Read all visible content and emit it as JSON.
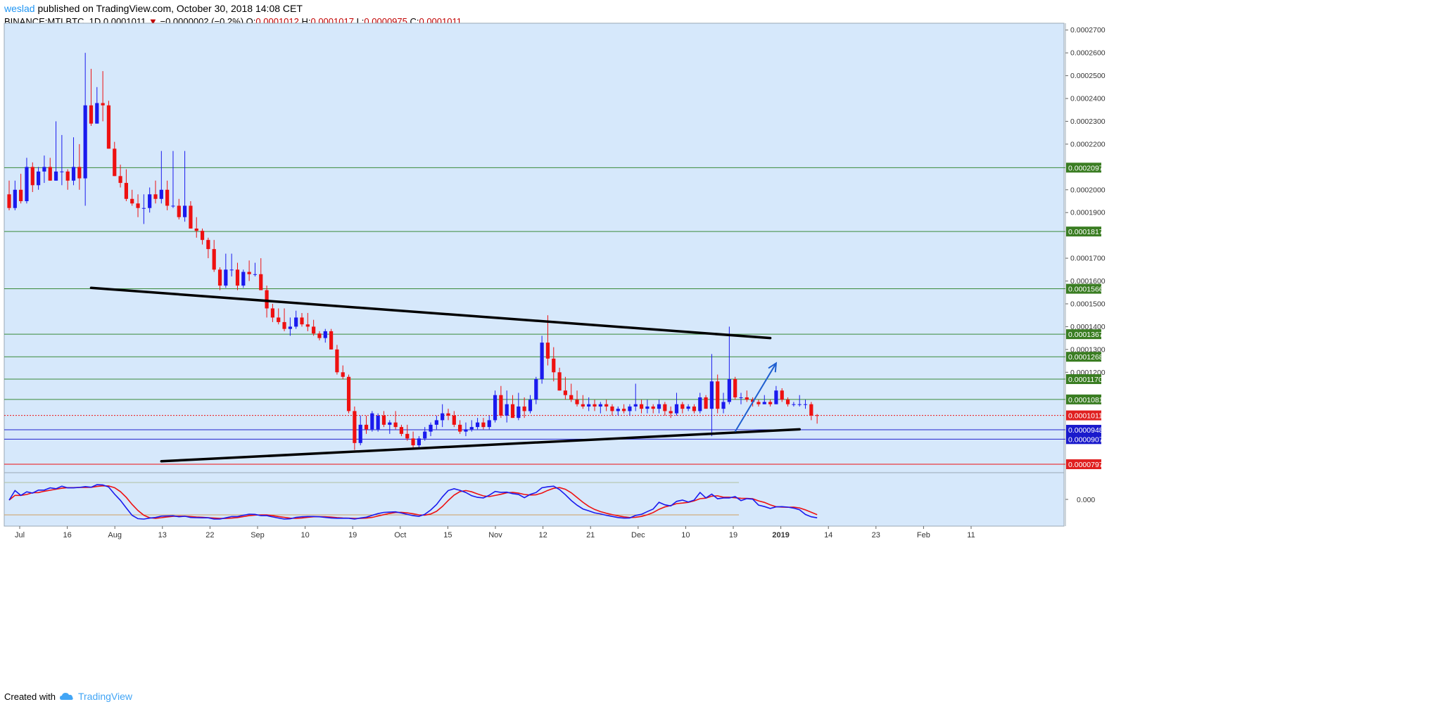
{
  "header": {
    "author": "weslad",
    "published_text": " published on TradingView.com, October 30, 2018 14:08 CET",
    "symbol": "BINANCE:MTLBTC, 1D",
    "last": "0.0001011",
    "change_arrow": "▼",
    "change": "−0.0000002 (−0.2%)",
    "o_label": "O:",
    "o_value": "0.0001012",
    "h_label": "H:",
    "h_value": "0.0001017",
    "l_label": "L:",
    "l_value": "0.0000975",
    "c_label": "C:",
    "c_value": "0.0001011"
  },
  "footer": {
    "created_with": "Created with",
    "brand": "TradingView",
    "logo_icon": "tradingview-cloud-icon"
  },
  "colors": {
    "chart_bg": "#d6e8fb",
    "up_candle": "#1a1aee",
    "down_candle": "#ee1111",
    "level_line": "#3a8a3a",
    "level_label_bg": "#3a7d22",
    "support_line": "#2222cc",
    "last_price": "#ee1111",
    "trendline": "#000000",
    "arrow": "#1f5fd0"
  },
  "chart_data": {
    "type": "candlestick",
    "title": "BINANCE:MTLBTC, 1D",
    "x_axis": {
      "tick_labels": [
        "Jul",
        "16",
        "Aug",
        "13",
        "22",
        "Sep",
        "10",
        "19",
        "Oct",
        "15",
        "Nov",
        "12",
        "21",
        "Dec",
        "10",
        "19",
        "2019",
        "14",
        "23",
        "Feb",
        "11"
      ],
      "range": [
        "2018-07-01",
        "2019-02-11"
      ]
    },
    "y_axis": {
      "tick_labels": [
        "0.0002700",
        "0.0002600",
        "0.0002500",
        "0.0002400",
        "0.0002300",
        "0.0002200",
        "0.0002000",
        "0.0001900",
        "0.0001700",
        "0.0001600",
        "0.0001500",
        "0.0001400",
        "0.0001300",
        "0.0001200"
      ],
      "range": [
        7.6e-05,
        0.000273
      ],
      "scale": "linear",
      "side": "right"
    },
    "horizontal_levels": [
      {
        "label": "0.0002097",
        "value": 0.0002097,
        "style": "green"
      },
      {
        "label": "0.0001817",
        "value": 0.0001817,
        "style": "green"
      },
      {
        "label": "0.0001566",
        "value": 0.0001566,
        "style": "green"
      },
      {
        "label": "0.0001367",
        "value": 0.0001367,
        "style": "green"
      },
      {
        "label": "0.0001268",
        "value": 0.0001268,
        "style": "green"
      },
      {
        "label": "0.0001170",
        "value": 0.000117,
        "style": "green"
      },
      {
        "label": "0.0001081",
        "value": 0.0001081,
        "style": "green"
      },
      {
        "label": "0.0001011",
        "value": 0.0001011,
        "style": "last-price"
      },
      {
        "label": "0.0000948",
        "value": 9.48e-05,
        "style": "blue"
      },
      {
        "label": "0.0000907",
        "value": 9.07e-05,
        "style": "blue"
      },
      {
        "label": "0.0000797",
        "value": 7.97e-05,
        "style": "red"
      }
    ],
    "trendlines": [
      {
        "name": "resistance",
        "from": [
          "2018-07-11",
          0.000157
        ],
        "to": [
          "2018-11-04",
          0.000135
        ]
      },
      {
        "name": "support",
        "from": [
          "2018-07-23",
          8.1e-05
        ],
        "to": [
          "2018-11-09",
          9.5e-05
        ]
      }
    ],
    "arrow": {
      "from": [
        "2018-10-29",
        9.4e-05
      ],
      "to": [
        "2018-11-05",
        0.000124
      ]
    },
    "candles_ohlc": [
      [
        0.000198,
        0.000204,
        0.000191,
        0.000192
      ],
      [
        0.000192,
        0.000204,
        0.000191,
        0.0002
      ],
      [
        0.0002,
        0.000207,
        0.000194,
        0.000195
      ],
      [
        0.000195,
        0.000214,
        0.000194,
        0.00021
      ],
      [
        0.00021,
        0.000212,
        0.000199,
        0.000202
      ],
      [
        0.000202,
        0.00021,
        0.0002,
        0.000208
      ],
      [
        0.000208,
        0.000215,
        0.000203,
        0.00021
      ],
      [
        0.00021,
        0.000214,
        0.000204,
        0.000204
      ],
      [
        0.000204,
        0.00023,
        0.000204,
        0.000208
      ],
      [
        0.000208,
        0.000224,
        0.000202,
        0.000208
      ],
      [
        0.000208,
        0.000209,
        0.0002,
        0.000204
      ],
      [
        0.000204,
        0.000223,
        0.000202,
        0.00021
      ],
      [
        0.00021,
        0.00022,
        0.0002,
        0.000205
      ],
      [
        0.000205,
        0.00026,
        0.000193,
        0.000237
      ],
      [
        0.000237,
        0.000253,
        0.000228,
        0.000229
      ],
      [
        0.000229,
        0.000245,
        0.000229,
        0.000238
      ],
      [
        0.000238,
        0.000252,
        0.00023,
        0.000237
      ],
      [
        0.000237,
        0.000239,
        0.000218,
        0.000218
      ],
      [
        0.000218,
        0.000221,
        0.000206,
        0.000206
      ],
      [
        0.000206,
        0.000211,
        0.000201,
        0.000203
      ],
      [
        0.000203,
        0.000209,
        0.000195,
        0.000196
      ],
      [
        0.000196,
        0.0002,
        0.000193,
        0.000194
      ],
      [
        0.000194,
        0.000198,
        0.000188,
        0.000192
      ],
      [
        0.000192,
        0.000198,
        0.000185,
        0.000192
      ],
      [
        0.000192,
        0.000201,
        0.00019,
        0.000198
      ],
      [
        0.000198,
        0.000204,
        0.000194,
        0.000196
      ],
      [
        0.000196,
        0.000217,
        0.000194,
        0.0002
      ],
      [
        0.0002,
        0.000204,
        0.000191,
        0.000193
      ],
      [
        0.000193,
        0.000217,
        0.000192,
        0.000193
      ],
      [
        0.000193,
        0.000196,
        0.000187,
        0.000188
      ],
      [
        0.000188,
        0.000217,
        0.000186,
        0.000193
      ],
      [
        0.000193,
        0.000195,
        0.000183,
        0.000183
      ],
      [
        0.000183,
        0.000188,
        0.000179,
        0.000182
      ],
      [
        0.000182,
        0.000183,
        0.000176,
        0.000178
      ],
      [
        0.000178,
        0.000179,
        0.00017,
        0.000174
      ],
      [
        0.000174,
        0.000178,
        0.000164,
        0.000165
      ],
      [
        0.000165,
        0.000166,
        0.000156,
        0.000158
      ],
      [
        0.000158,
        0.000172,
        0.000157,
        0.000165
      ],
      [
        0.000165,
        0.000172,
        0.000162,
        0.000165
      ],
      [
        0.000165,
        0.000168,
        0.000156,
        0.000158
      ],
      [
        0.000158,
        0.000165,
        0.000157,
        0.000164
      ],
      [
        0.000164,
        0.000169,
        0.00016,
        0.000163
      ],
      [
        0.000163,
        0.000168,
        0.000162,
        0.000163
      ],
      [
        0.000163,
        0.00017,
        0.000156,
        0.000156
      ],
      [
        0.000156,
        0.000158,
        0.000144,
        0.000148
      ],
      [
        0.000148,
        0.00015,
        0.000142,
        0.000144
      ],
      [
        0.000144,
        0.000148,
        0.000141,
        0.000142
      ],
      [
        0.000142,
        0.000148,
        0.000138,
        0.000139
      ],
      [
        0.000139,
        0.000144,
        0.000136,
        0.00014
      ],
      [
        0.00014,
        0.000147,
        0.000139,
        0.000144
      ],
      [
        0.000144,
        0.000146,
        0.00014,
        0.000141
      ],
      [
        0.000141,
        0.000146,
        0.000138,
        0.00014
      ],
      [
        0.00014,
        0.000143,
        0.000136,
        0.000137
      ],
      [
        0.000137,
        0.000138,
        0.000134,
        0.000135
      ],
      [
        0.000135,
        0.000139,
        0.000133,
        0.000138
      ],
      [
        0.000138,
        0.000139,
        0.00013,
        0.00013
      ],
      [
        0.00013,
        0.000132,
        0.000119,
        0.00012
      ],
      [
        0.00012,
        0.000123,
        0.000117,
        0.000118
      ],
      [
        0.000118,
        0.000119,
        0.000102,
        0.000103
      ],
      [
        0.000103,
        0.000105,
        8.6e-05,
        8.9e-05
      ],
      [
        8.9e-05,
        0.000101,
        8.8e-05,
        9.7e-05
      ],
      [
        9.7e-05,
        0.000101,
        9.3e-05,
        9.5e-05
      ],
      [
        9.5e-05,
        0.000103,
        9.4e-05,
        0.000102
      ],
      [
        9.5e-05,
        0.000102,
        9.4e-05,
        0.000101
      ],
      [
        0.000101,
        0.000103,
        9.6e-05,
        9.7e-05
      ],
      [
        9.7e-05,
        9.9e-05,
        9.3e-05,
        9.8e-05
      ],
      [
        9.8e-05,
        0.000103,
        9.5e-05,
        9.6e-05
      ],
      [
        9.6e-05,
        9.7e-05,
        9.2e-05,
        9.3e-05
      ],
      [
        9.3e-05,
        9.7e-05,
        9e-05,
        9.1e-05
      ],
      [
        9.1e-05,
        9.4e-05,
        8.7e-05,
        8.8e-05
      ],
      [
        8.8e-05,
        9.2e-05,
        8.7e-05,
        9.1e-05
      ],
      [
        9.1e-05,
        9.6e-05,
        9e-05,
        9.4e-05
      ],
      [
        9.4e-05,
        9.8e-05,
        9.2e-05,
        9.7e-05
      ],
      [
        9.7e-05,
        0.000101,
        9.5e-05,
        9.9e-05
      ],
      [
        9.9e-05,
        0.000106,
        9.6e-05,
        0.000102
      ],
      [
        0.000102,
        0.000104,
        9.9e-05,
        0.000101
      ],
      [
        0.000101,
        0.000103,
        9.6e-05,
        9.7e-05
      ],
      [
        9.7e-05,
        9.9e-05,
        9.3e-05,
        9.4e-05
      ],
      [
        9.4e-05,
        9.8e-05,
        9.2e-05,
        9.5e-05
      ],
      [
        9.5e-05,
        9.9e-05,
        9.4e-05,
        9.6e-05
      ],
      [
        9.6e-05,
        0.0001,
        9.5e-05,
        9.8e-05
      ],
      [
        9.8e-05,
        0.0001,
        9.5e-05,
        9.6e-05
      ],
      [
        9.6e-05,
        0.000101,
        9.5e-05,
        9.9e-05
      ],
      [
        9.9e-05,
        0.000112,
        9.8e-05,
        0.00011
      ],
      [
        0.00011,
        0.000114,
        0.0001,
        0.000101
      ],
      [
        0.000101,
        0.000112,
        9.8e-05,
        0.000106
      ],
      [
        0.000106,
        0.00011,
        0.0001,
        0.0001
      ],
      [
        0.0001,
        0.000111,
        9.9e-05,
        0.000105
      ],
      [
        0.000105,
        0.000109,
        0.0001,
        0.000103
      ],
      [
        0.000103,
        0.00011,
        0.000102,
        0.000108
      ],
      [
        0.000108,
        0.000118,
        0.000106,
        0.000117
      ],
      [
        0.000117,
        0.000136,
        0.000115,
        0.000133
      ],
      [
        0.000133,
        0.000145,
        0.000123,
        0.000126
      ],
      [
        0.000126,
        0.000131,
        0.000116,
        0.00012
      ],
      [
        0.00012,
        0.000122,
        0.000112,
        0.000112
      ],
      [
        0.000112,
        0.000118,
        0.000108,
        0.00011
      ],
      [
        0.00011,
        0.000115,
        0.000107,
        0.000108
      ],
      [
        0.000108,
        0.000112,
        0.000105,
        0.000106
      ],
      [
        0.000106,
        0.00011,
        0.000104,
        0.000105
      ],
      [
        0.000105,
        0.000109,
        0.000103,
        0.000106
      ],
      [
        0.000106,
        0.000108,
        0.000103,
        0.000105
      ],
      [
        0.000105,
        0.000107,
        0.000102,
        0.000106
      ],
      [
        0.000106,
        0.000108,
        0.000103,
        0.000105
      ],
      [
        0.000105,
        0.000106,
        0.000101,
        0.000103
      ],
      [
        0.000103,
        0.000105,
        0.000101,
        0.000104
      ],
      [
        0.000104,
        0.000106,
        0.000102,
        0.000103
      ],
      [
        0.000103,
        0.000106,
        0.000101,
        0.000105
      ],
      [
        0.000105,
        0.000115,
        0.000103,
        0.000106
      ],
      [
        0.000106,
        0.000108,
        0.000102,
        0.000104
      ],
      [
        0.000104,
        0.000108,
        0.000102,
        0.000105
      ],
      [
        0.000105,
        0.000106,
        0.000102,
        0.000104
      ],
      [
        0.000104,
        0.000108,
        0.000102,
        0.000106
      ],
      [
        0.000106,
        0.000107,
        0.000101,
        0.000103
      ],
      [
        0.000103,
        0.000105,
        0.0001,
        0.000102
      ],
      [
        0.000102,
        0.000111,
        0.000101,
        0.000106
      ],
      [
        0.000106,
        0.000107,
        0.000102,
        0.000104
      ],
      [
        0.000104,
        0.000106,
        0.000103,
        0.000105
      ],
      [
        0.000105,
        0.000106,
        0.000102,
        0.000103
      ],
      [
        0.000103,
        0.000111,
        0.000102,
        0.000109
      ],
      [
        0.000109,
        0.00011,
        0.000104,
        0.000104
      ],
      [
        0.000104,
        0.000128,
        9.2e-05,
        0.000116
      ],
      [
        0.000116,
        0.000119,
        0.000102,
        0.000104
      ],
      [
        0.000104,
        0.000111,
        0.000102,
        0.000107
      ],
      [
        0.000107,
        0.00014,
        0.000106,
        0.000117
      ],
      [
        0.000117,
        0.000118,
        0.000108,
        0.000109
      ],
      [
        0.000109,
        0.000111,
        0.000106,
        0.000109
      ],
      [
        0.000109,
        0.000112,
        0.000107,
        0.000108
      ],
      [
        0.000108,
        0.000109,
        0.000105,
        0.000107
      ],
      [
        0.000107,
        0.000108,
        0.000105,
        0.000106
      ],
      [
        0.000106,
        0.00011,
        0.000106,
        0.000107
      ],
      [
        0.000107,
        0.000108,
        0.000105,
        0.000106
      ],
      [
        0.000106,
        0.000114,
        0.000106,
        0.000112
      ],
      [
        0.000112,
        0.000113,
        0.000107,
        0.000108
      ],
      [
        0.000108,
        0.000109,
        0.000105,
        0.000106
      ],
      [
        0.000106,
        0.000107,
        0.000105,
        0.000106
      ],
      [
        0.000106,
        0.00011,
        0.000105,
        0.000106
      ],
      [
        0.000106,
        0.000108,
        0.000104,
        0.000106
      ],
      [
        0.000106,
        0.000107,
        9.9e-05,
        0.000101
      ],
      [
        0.0001012,
        0.0001017,
        9.75e-05,
        0.0001011
      ]
    ],
    "oscillator": {
      "zero_label": "0.000",
      "line1_color": "#1a1aee",
      "line2_color": "#ee1111"
    }
  }
}
